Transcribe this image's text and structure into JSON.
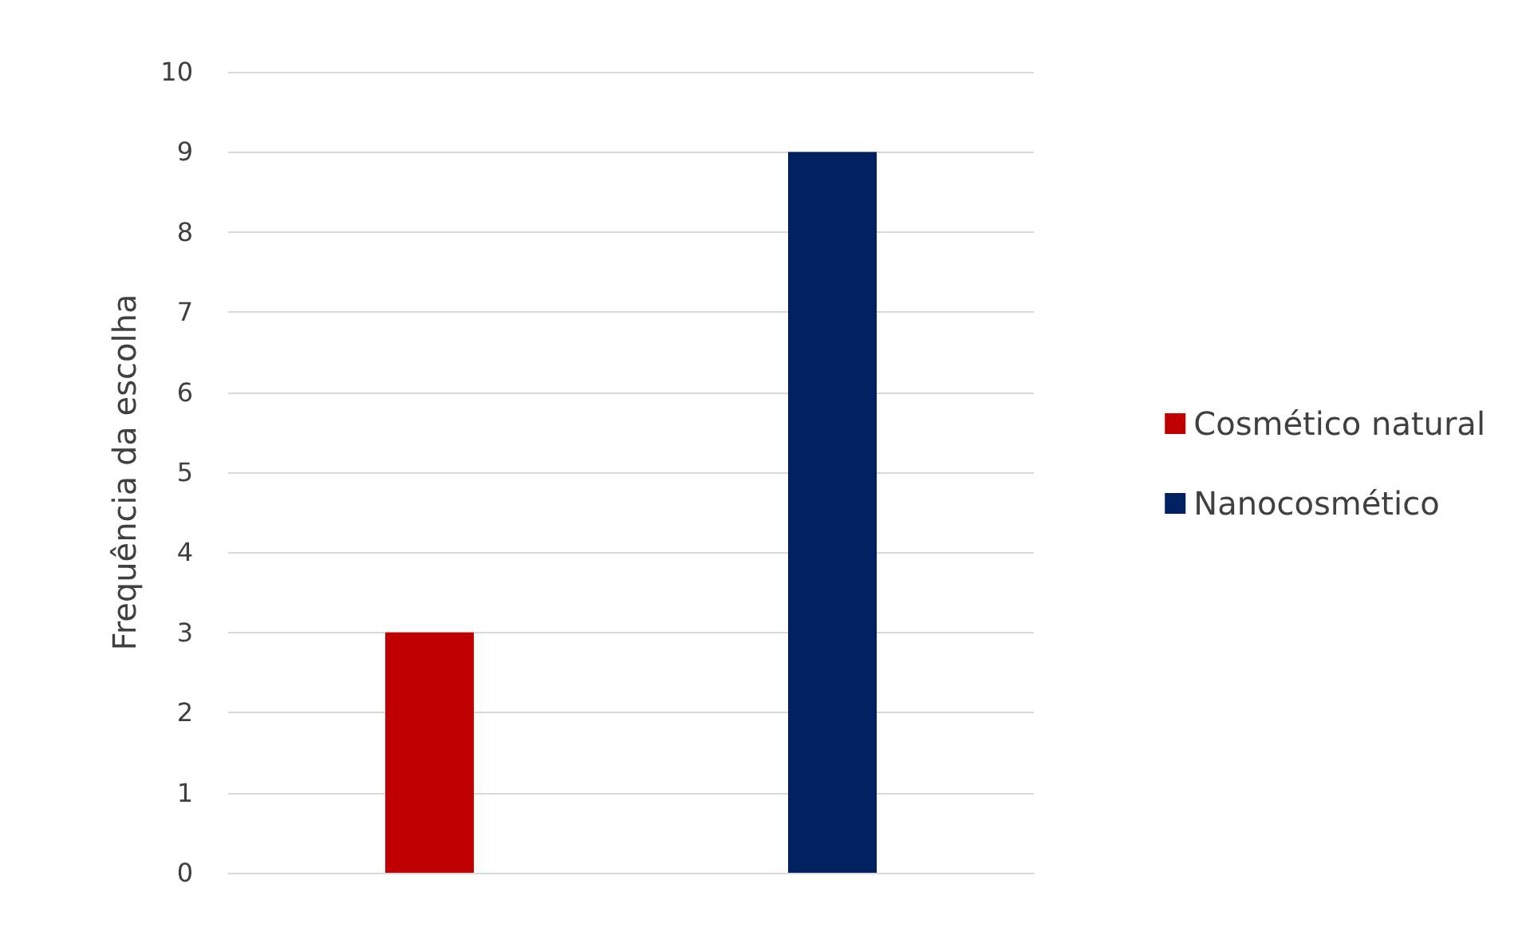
{
  "chart_data": {
    "type": "bar",
    "ylabel": "Frequência da escolha",
    "categories": [
      null,
      null
    ],
    "stacked": true,
    "series": [
      {
        "name": "Cosmético natural",
        "color": "#c00000",
        "values": [
          3,
          null
        ]
      },
      {
        "name": "Nanocosmético",
        "color": "#002060",
        "values": [
          null,
          9
        ]
      }
    ],
    "ylim": [
      0,
      10
    ],
    "yticks": [
      0,
      1,
      2,
      3,
      4,
      5,
      6,
      7,
      8,
      9,
      10
    ],
    "grid": "y",
    "legend": "right"
  }
}
